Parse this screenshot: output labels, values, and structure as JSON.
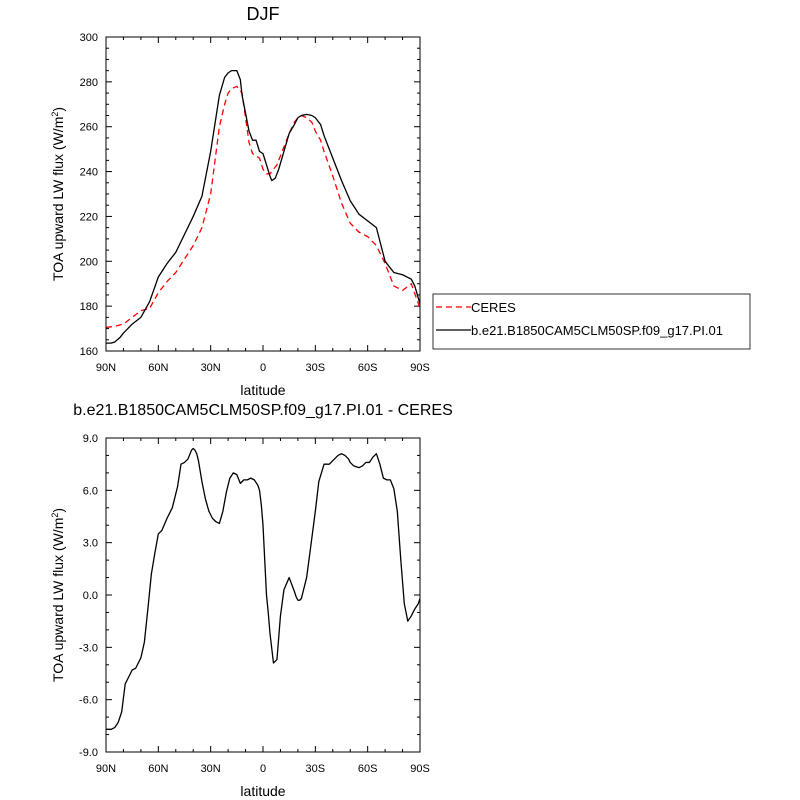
{
  "chart_data": [
    {
      "type": "line",
      "title": "DJF",
      "xlabel": "latitude",
      "ylabel_main": "TOA upward LW flux (W/m",
      "ylabel_sup": "2",
      "ylabel_close": ")",
      "xlim": [
        -90,
        90
      ],
      "ylim": [
        160,
        300
      ],
      "xticks": [
        -90,
        -60,
        -30,
        0,
        30,
        60,
        90
      ],
      "xtick_labels": [
        "90N",
        "60N",
        "30N",
        "0",
        "30S",
        "60S",
        "90S"
      ],
      "yticks": [
        160,
        180,
        200,
        220,
        240,
        260,
        280,
        300
      ],
      "ytick_labels": [
        "160",
        "180",
        "200",
        "220",
        "240",
        "260",
        "280",
        "300"
      ],
      "legend_position": "right",
      "series": [
        {
          "name": "CERES",
          "color": "#ff0000",
          "dash": "dashed",
          "x": [
            -90,
            -85,
            -80,
            -75,
            -70,
            -65,
            -60,
            -55,
            -50,
            -45,
            -40,
            -35,
            -30,
            -25,
            -22,
            -20,
            -18,
            -15,
            -12,
            -10,
            -8,
            -6,
            -4,
            -2,
            0,
            2,
            4,
            6,
            8,
            10,
            12,
            15,
            18,
            20,
            22,
            25,
            28,
            30,
            33,
            35,
            40,
            45,
            50,
            55,
            60,
            65,
            70,
            75,
            80,
            85,
            90
          ],
          "y": [
            170.5,
            171,
            172,
            175,
            178,
            179,
            186,
            191,
            195,
            201,
            207,
            215,
            230,
            260,
            270,
            275,
            277,
            278,
            275,
            264,
            253,
            248,
            247,
            246,
            241,
            239,
            239,
            241,
            243,
            247,
            251,
            257,
            262,
            264,
            265,
            264,
            262,
            258,
            254,
            249,
            238,
            226,
            217,
            213,
            211,
            207,
            199,
            189,
            187,
            190,
            179
          ]
        },
        {
          "name": "b.e21.B1850CAM5CLM50SP.f09_g17.PI.01",
          "color": "#000000",
          "dash": "solid",
          "x": [
            -90,
            -87,
            -85,
            -82,
            -80,
            -75,
            -70,
            -65,
            -60,
            -55,
            -50,
            -45,
            -40,
            -35,
            -30,
            -25,
            -22,
            -20,
            -18,
            -15,
            -13,
            -12,
            -10,
            -8,
            -6,
            -4,
            -2,
            0,
            2,
            4,
            5,
            7,
            9,
            12,
            15,
            18,
            20,
            22,
            25,
            28,
            30,
            33,
            35,
            40,
            45,
            50,
            55,
            60,
            65,
            70,
            75,
            80,
            85,
            87,
            90
          ],
          "y": [
            163.5,
            163.5,
            164,
            166,
            168,
            172,
            175,
            182,
            193,
            199,
            204,
            212,
            220,
            229,
            249,
            274,
            282,
            284,
            285,
            285,
            281,
            274,
            266,
            258,
            254,
            254,
            249,
            248,
            243,
            238,
            236,
            237,
            241,
            249,
            257,
            261,
            264,
            265,
            265.5,
            265,
            264,
            261,
            256,
            246,
            236,
            227,
            221,
            218,
            215,
            200,
            195,
            194,
            192,
            189,
            181
          ]
        }
      ]
    },
    {
      "type": "line",
      "title": "b.e21.B1850CAM5CLM50SP.f09_g17.PI.01 - CERES",
      "xlabel": "latitude",
      "ylabel_main": "TOA upward LW flux (W/m",
      "ylabel_sup": "2",
      "ylabel_close": ")",
      "xlim": [
        -90,
        90
      ],
      "ylim": [
        -9,
        9
      ],
      "xticks": [
        -90,
        -60,
        -30,
        0,
        30,
        60,
        90
      ],
      "xtick_labels": [
        "90N",
        "60N",
        "30N",
        "0",
        "30S",
        "60S",
        "90S"
      ],
      "yticks": [
        -9,
        -6,
        -3,
        0,
        3,
        6,
        9
      ],
      "ytick_labels": [
        "-9.0",
        "-6.0",
        "-3.0",
        "0.0",
        "3.0",
        "6.0",
        "9.0"
      ],
      "series": [
        {
          "color": "#000000",
          "dash": "solid",
          "x": [
            -90,
            -87,
            -85,
            -83,
            -81,
            -79,
            -77,
            -75,
            -73,
            -70,
            -68,
            -66,
            -64,
            -62,
            -60,
            -58,
            -55,
            -52,
            -49,
            -47,
            -45,
            -43,
            -41,
            -40,
            -39,
            -38,
            -37,
            -35,
            -33,
            -31,
            -29,
            -27,
            -25,
            -23,
            -21,
            -19,
            -17,
            -15,
            -13,
            -11,
            -9,
            -7,
            -5,
            -3,
            -2,
            -1,
            0,
            1,
            2,
            3,
            4,
            6,
            7,
            8,
            10,
            12,
            15,
            18,
            19,
            20,
            21,
            22,
            25,
            27,
            30,
            32,
            35,
            38,
            41,
            43,
            45,
            47,
            49,
            50,
            52,
            55,
            57,
            59,
            61,
            63,
            65,
            67,
            69,
            71,
            73,
            75,
            77,
            79,
            81,
            83,
            85,
            87,
            89,
            90
          ],
          "y": [
            -7.7,
            -7.7,
            -7.6,
            -7.3,
            -6.7,
            -5.1,
            -4.7,
            -4.3,
            -4.2,
            -3.6,
            -2.7,
            -0.8,
            1.2,
            2.4,
            3.5,
            3.7,
            4.4,
            5.0,
            6.2,
            7.5,
            7.6,
            7.8,
            8.3,
            8.4,
            8.3,
            8.1,
            7.7,
            6.5,
            5.5,
            4.8,
            4.4,
            4.2,
            4.1,
            4.8,
            5.9,
            6.7,
            7.0,
            6.9,
            6.4,
            6.6,
            6.6,
            6.7,
            6.6,
            6.3,
            6.0,
            5.2,
            4.0,
            2.0,
            0,
            -1.0,
            -2.2,
            -3.9,
            -3.8,
            -3.7,
            -1.2,
            0.3,
            1.0,
            0.2,
            -0.1,
            -0.3,
            -0.3,
            -0.2,
            1.0,
            2.5,
            4.8,
            6.5,
            7.5,
            7.5,
            7.8,
            8.0,
            8.1,
            8.0,
            7.8,
            7.6,
            7.4,
            7.3,
            7.4,
            7.6,
            7.6,
            7.9,
            8.1,
            7.5,
            6.7,
            6.6,
            6.6,
            6.1,
            4.8,
            2.0,
            -0.5,
            -1.5,
            -1.2,
            -0.8,
            -0.5,
            -0.2
          ]
        }
      ]
    }
  ]
}
